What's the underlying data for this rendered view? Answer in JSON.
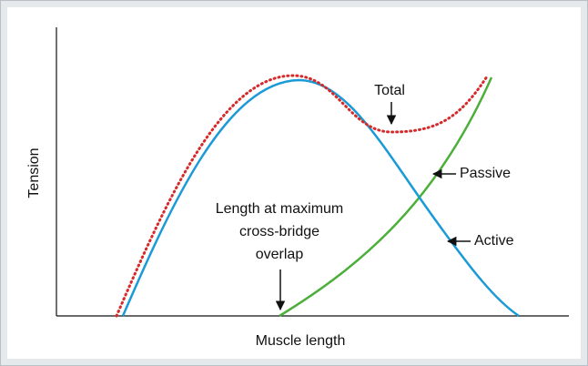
{
  "y_axis_label": "Tension",
  "x_axis_label": "Muscle length",
  "annotations": {
    "total": "Total",
    "passive": "Passive",
    "active": "Active",
    "max_overlap": [
      "Length at maximum",
      "cross-bridge",
      "overlap"
    ]
  }
}
